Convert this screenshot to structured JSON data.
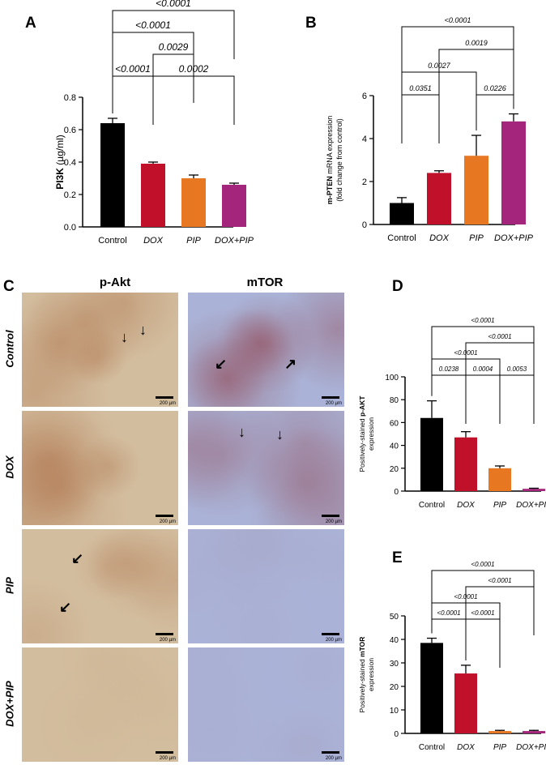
{
  "panels": {
    "A": "A",
    "B": "B",
    "C": "C",
    "D": "D",
    "E": "E"
  },
  "micrograph": {
    "columns": [
      "p-Akt",
      "mTOR"
    ],
    "rows": [
      "Control",
      "DOX",
      "PIP",
      "DOX+PIP"
    ],
    "scale_label": "200 µm",
    "colors": {
      "akt_bg": "#d2bd9e",
      "akt_stain": "#a9673f",
      "mtor_bg": "#aab3d7",
      "mtor_stain": "#8e3b45"
    }
  },
  "chart_data": [
    {
      "id": "A",
      "type": "bar",
      "categories": [
        "Control",
        "DOX",
        "PIP",
        "DOX+PIP"
      ],
      "values": [
        0.64,
        0.39,
        0.3,
        0.26
      ],
      "errors": [
        0.03,
        0.01,
        0.02,
        0.01
      ],
      "colors": [
        "#000000",
        "#c0102a",
        "#e87722",
        "#a3257c"
      ],
      "ylabel_main": "PI3K",
      "ylabel_unit": "(µg/ml)",
      "ylabel_bold": "",
      "ylim": [
        0,
        0.8
      ],
      "yticks": [
        "0.0",
        "0.2",
        "0.4",
        "0.6",
        "0.8"
      ],
      "brackets": [
        {
          "from": 0,
          "to": 3,
          "label": "<0.0001"
        },
        {
          "from": 0,
          "to": 2,
          "label": "<0.0001"
        },
        {
          "from": 1,
          "to": 2,
          "label": "0.0029"
        },
        {
          "from": 0,
          "to": 1,
          "label": "<0.0001"
        },
        {
          "from": 1,
          "to": 3,
          "label": "0.0002"
        }
      ]
    },
    {
      "id": "B",
      "type": "bar",
      "categories": [
        "Control",
        "DOX",
        "PIP",
        "DOX+PIP"
      ],
      "values": [
        1.0,
        2.4,
        3.2,
        4.8
      ],
      "errors": [
        0.25,
        0.1,
        0.95,
        0.35
      ],
      "colors": [
        "#000000",
        "#c0102a",
        "#e87722",
        "#a3257c"
      ],
      "ylabel_bold": "m-PTEN",
      "ylabel_main": " mRNA expression",
      "ylabel_line2": "(fold change from control)",
      "ylim": [
        0,
        6
      ],
      "yticks": [
        "0",
        "2",
        "4",
        "6"
      ],
      "brackets": [
        {
          "from": 0,
          "to": 3,
          "label": "<0.0001"
        },
        {
          "from": 1,
          "to": 3,
          "label": "0.0019"
        },
        {
          "from": 0,
          "to": 2,
          "label": "0.0027"
        },
        {
          "from": 0,
          "to": 1,
          "label": "0.0351"
        },
        {
          "from": 2,
          "to": 3,
          "label": "0.0226"
        }
      ]
    },
    {
      "id": "D",
      "type": "bar",
      "categories": [
        "Control",
        "DOX",
        "PIP",
        "DOX+PIP"
      ],
      "values": [
        64,
        47,
        20,
        2
      ],
      "errors": [
        15,
        5,
        2,
        0.5
      ],
      "colors": [
        "#000000",
        "#c0102a",
        "#e87722",
        "#a3257c"
      ],
      "ylabel_main": "Positively-stained ",
      "ylabel_bold": "p-AKT",
      "ylabel_line2": "expression",
      "ylim": [
        0,
        100
      ],
      "yticks": [
        "0",
        "20",
        "40",
        "60",
        "80",
        "100"
      ],
      "brackets": [
        {
          "from": 0,
          "to": 3,
          "label": "<0.0001"
        },
        {
          "from": 1,
          "to": 3,
          "label": "<0.0001"
        },
        {
          "from": 0,
          "to": 2,
          "label": "<0.0001"
        },
        {
          "from": 0,
          "to": 1,
          "label": "0.0238"
        },
        {
          "from": 1,
          "to": 2,
          "label": "0.0004"
        },
        {
          "from": 2,
          "to": 3,
          "label": "0.0053"
        }
      ]
    },
    {
      "id": "E",
      "type": "bar",
      "categories": [
        "Control",
        "DOX",
        "PIP",
        "DOX+PIP"
      ],
      "values": [
        38.5,
        25.5,
        1,
        1
      ],
      "errors": [
        2,
        3.5,
        0.3,
        0.3
      ],
      "colors": [
        "#000000",
        "#c0102a",
        "#e87722",
        "#a3257c"
      ],
      "ylabel_main": "Positively-stained ",
      "ylabel_bold": "mTOR",
      "ylabel_line2": "expression",
      "ylim": [
        0,
        50
      ],
      "yticks": [
        "0",
        "10",
        "20",
        "30",
        "40",
        "50"
      ],
      "brackets": [
        {
          "from": 0,
          "to": 3,
          "label": "<0.0001"
        },
        {
          "from": 1,
          "to": 3,
          "label": "<0.0001"
        },
        {
          "from": 0,
          "to": 2,
          "label": "<0.0001"
        },
        {
          "from": 0,
          "to": 1,
          "label": "<0.0001"
        },
        {
          "from": 1,
          "to": 2,
          "label": "<0.0001"
        }
      ]
    }
  ]
}
